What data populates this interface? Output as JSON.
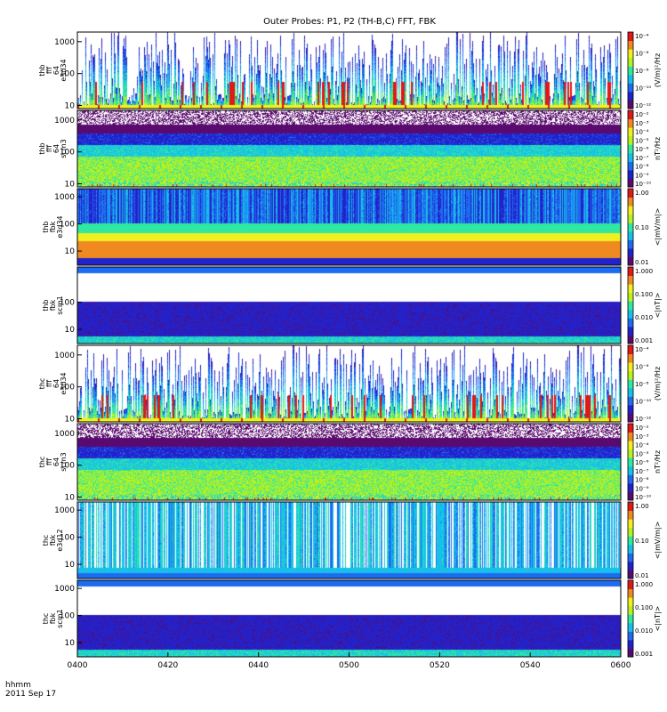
{
  "title": "Outer Probes: P1, P2 (TH-B,C) FFT, FBK",
  "footer": {
    "time_format": "hhmm",
    "date": "2011 Sep 17"
  },
  "colors": {
    "colormap": [
      "#ffffff",
      "#5a0a6e",
      "#2222cc",
      "#1d6bf0",
      "#17c0e8",
      "#30e8a0",
      "#b8f020",
      "#f0f020",
      "#f08a20",
      "#e01818"
    ],
    "background": "#ffffff",
    "axis": "#000000"
  },
  "chart_data": [
    {
      "type": "heatmap",
      "panel": "thb-fff-e",
      "ylabel": [
        "thb",
        "fff",
        "64",
        "e3d34"
      ],
      "y_scale": "log",
      "yticks": [
        10,
        100,
        1000
      ],
      "y_range": [
        8,
        2000
      ],
      "colorbar_ticks": [
        "10⁻⁴",
        "10⁻⁶",
        "10⁻⁸",
        "10⁻¹⁰",
        "10⁻¹²"
      ],
      "colorbar_label": "(V/m)²/Hz",
      "pattern": "bursty"
    },
    {
      "type": "heatmap",
      "panel": "thb-fff-b",
      "ylabel": [
        "thb",
        "fff",
        "64",
        "scm3"
      ],
      "y_scale": "log",
      "yticks": [
        10,
        100,
        1000
      ],
      "y_range": [
        8,
        2000
      ],
      "colorbar_ticks": [
        "10⁻²",
        "10⁻³",
        "10⁻⁴",
        "10⁻⁵",
        "10⁻⁶",
        "10⁻⁷",
        "10⁻⁸",
        "10⁻⁹",
        "10⁻¹⁰"
      ],
      "colorbar_label": "nT²/Hz",
      "pattern": "magnetic"
    },
    {
      "type": "heatmap",
      "panel": "thb-fbk-e",
      "ylabel": [
        "thb",
        "fbk",
        "e3d34"
      ],
      "y_scale": "log",
      "yticks": [
        10,
        100,
        1000
      ],
      "y_range": [
        3,
        2000
      ],
      "colorbar_ticks": [
        "1.00",
        "0.10",
        "0.01"
      ],
      "colorbar_label": "<|mV/m|>",
      "pattern": "fbk_e"
    },
    {
      "type": "heatmap",
      "panel": "thb-fbk-b",
      "ylabel": [
        "thb",
        "fbk",
        "scm1"
      ],
      "y_scale": "log",
      "yticks": [
        10,
        100
      ],
      "y_range": [
        3,
        2000
      ],
      "colorbar_ticks": [
        "1.000",
        "0.100",
        "0.010",
        "0.001"
      ],
      "colorbar_label": "<|nT|>",
      "pattern": "fbk_b"
    },
    {
      "type": "heatmap",
      "panel": "thc-fff-e",
      "ylabel": [
        "thc",
        "fff",
        "64",
        "e3d34"
      ],
      "y_scale": "log",
      "yticks": [
        10,
        100,
        1000
      ],
      "y_range": [
        8,
        2000
      ],
      "colorbar_ticks": [
        "10⁻⁴",
        "10⁻⁶",
        "10⁻⁸",
        "10⁻¹⁰",
        "10⁻¹²"
      ],
      "colorbar_label": "(V/m)²/Hz",
      "pattern": "bursty"
    },
    {
      "type": "heatmap",
      "panel": "thc-fff-b",
      "ylabel": [
        "thc",
        "fff",
        "64",
        "scm3"
      ],
      "y_scale": "log",
      "yticks": [
        10,
        100,
        1000
      ],
      "y_range": [
        8,
        2000
      ],
      "colorbar_ticks": [
        "10⁻²",
        "10⁻³",
        "10⁻⁴",
        "10⁻⁵",
        "10⁻⁶",
        "10⁻⁷",
        "10⁻⁸",
        "10⁻⁹",
        "10⁻¹⁰"
      ],
      "colorbar_label": "nT²/Hz",
      "pattern": "magnetic"
    },
    {
      "type": "heatmap",
      "panel": "thc-fbk-e",
      "ylabel": [
        "thc",
        "fbk",
        "e3d12"
      ],
      "y_scale": "log",
      "yticks": [
        10,
        100,
        1000
      ],
      "y_range": [
        3,
        2000
      ],
      "colorbar_ticks": [
        "1.00",
        "0.10",
        "0.01"
      ],
      "colorbar_label": "<|mV/m|>",
      "pattern": "fbk_e2"
    },
    {
      "type": "heatmap",
      "panel": "thc-fbk-b",
      "ylabel": [
        "thc",
        "fbk",
        "scm1"
      ],
      "y_scale": "log",
      "yticks": [
        10,
        100,
        1000
      ],
      "y_range": [
        3,
        2000
      ],
      "colorbar_ticks": [
        "1.000",
        "0.100",
        "0.010",
        "0.001"
      ],
      "colorbar_label": "<|nT|>",
      "pattern": "fbk_b"
    }
  ],
  "x_axis": {
    "ticks": [
      "0400",
      "0420",
      "0440",
      "0500",
      "0520",
      "0540",
      "0600"
    ]
  }
}
